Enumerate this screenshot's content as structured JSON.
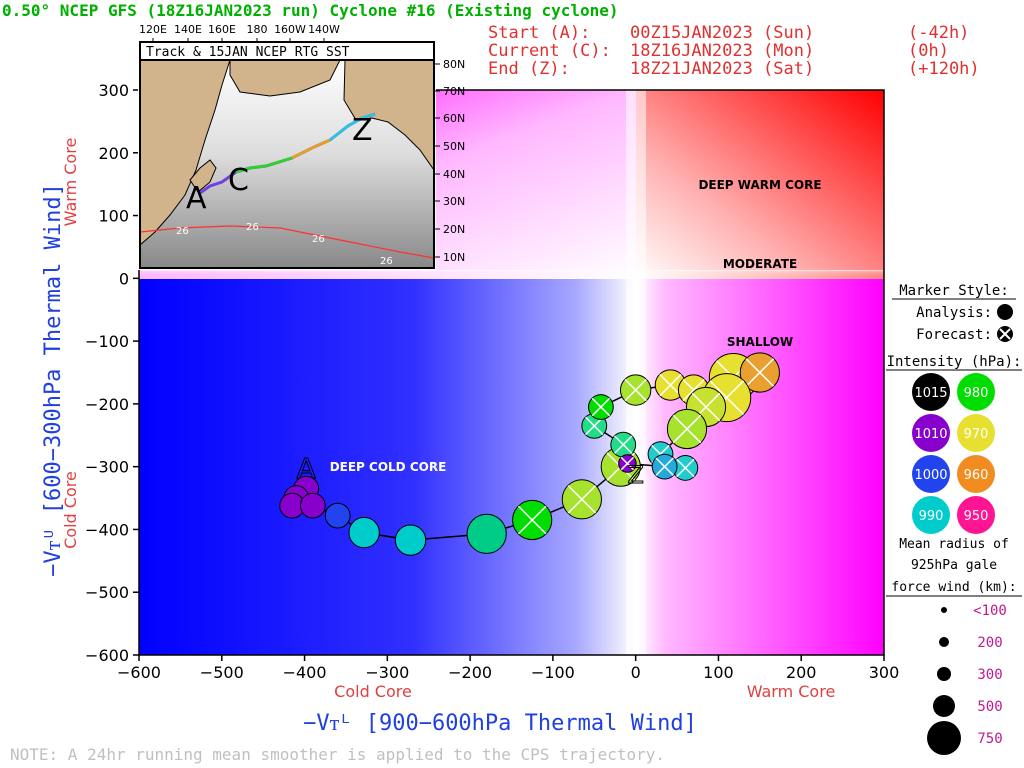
{
  "header": {
    "title": "0.50° NCEP GFS (18Z16JAN2023 run) Cyclone #16 (Existing cyclone)",
    "start_label": "Start (A):",
    "start_time": "00Z15JAN2023 (Sun)",
    "start_offset": "(-42h)",
    "current_label": "Current (C):",
    "current_time": "18Z16JAN2023 (Mon)",
    "current_offset": "(0h)",
    "end_label": "End (Z):",
    "end_time": "18Z21JAN2023 (Sat)",
    "end_offset": "(+120h)"
  },
  "inset": {
    "title": "Track & 15JAN NCEP RTG SST",
    "lon_labels": [
      "120E",
      "140E",
      "160E",
      "180",
      "160W",
      "140W"
    ],
    "lat_labels": [
      "80N",
      "70N",
      "60N",
      "50N",
      "40N",
      "30N",
      "20N",
      "10N"
    ],
    "sst_labels": [
      "26",
      "26",
      "26",
      "26"
    ],
    "letters": [
      "A",
      "C",
      "Z"
    ]
  },
  "quadrants": {
    "deep_warm": "DEEP WARM CORE",
    "moderate": "MODERATE",
    "shallow": "SHALLOW",
    "deep_cold": "DEEP COLD CORE"
  },
  "axes": {
    "ylabel": "−Vᴛᵁ [600−300hPa Thermal Wind]",
    "xlabel": "−Vᴛᴸ [900−600hPa Thermal Wind]",
    "y_warm": "Warm Core",
    "y_cold": "Cold Core",
    "x_cold": "Cold Core",
    "x_warm": "Warm Core"
  },
  "legend": {
    "marker_style_title": "Marker Style:",
    "analysis_label": "Analysis:",
    "forecast_label": "Forecast:",
    "intensity_title": "Intensity (hPa):",
    "intensity_values": [
      "1015",
      "980",
      "1010",
      "970",
      "1000",
      "960",
      "990",
      "950"
    ],
    "intensity_colors": [
      "#000000",
      "#00dd00",
      "#8800cc",
      "#e8e030",
      "#2244ee",
      "#f08c20",
      "#00cccc",
      "#ff1493"
    ],
    "radius_title_1": "Mean radius of",
    "radius_title_2": "925hPa gale",
    "radius_title_3": "force wind (km):",
    "radius_values": [
      "<100",
      "200",
      "300",
      "500",
      "750"
    ]
  },
  "note": "NOTE:  A 24hr running mean smoother is applied to the CPS trajectory.",
  "chart_data": {
    "type": "scatter",
    "title": "0.50° NCEP GFS (18Z16JAN2023 run) Cyclone #16 (Existing cyclone)",
    "xlabel": "−Vᴛᴸ [900−600hPa Thermal Wind]",
    "ylabel": "−Vᴛᵁ [600−300hPa Thermal Wind]",
    "xlim": [
      -600,
      300
    ],
    "ylim": [
      -600,
      300
    ],
    "xticks": [
      -600,
      -500,
      -400,
      -300,
      -200,
      -100,
      0,
      100,
      200,
      300
    ],
    "yticks": [
      -600,
      -500,
      -400,
      -300,
      -200,
      -100,
      0,
      100,
      200,
      300
    ],
    "start_marker": {
      "label": "A",
      "x": -398,
      "y": -312
    },
    "end_marker": {
      "label": "Z",
      "x": 0,
      "y": -310
    },
    "points": [
      {
        "x": -398,
        "y": -335,
        "type": "analysis",
        "color": "#8800cc",
        "radius_km": 200
      },
      {
        "x": -410,
        "y": -350,
        "type": "analysis",
        "color": "#8800cc",
        "radius_km": 200
      },
      {
        "x": -415,
        "y": -362,
        "type": "analysis",
        "color": "#8800cc",
        "radius_km": 200
      },
      {
        "x": -390,
        "y": -362,
        "type": "analysis",
        "color": "#8800cc",
        "radius_km": 200
      },
      {
        "x": -360,
        "y": -378,
        "type": "analysis",
        "color": "#2244ee",
        "radius_km": 200
      },
      {
        "x": -328,
        "y": -405,
        "type": "analysis",
        "color": "#00cccc",
        "radius_km": 300
      },
      {
        "x": -272,
        "y": -417,
        "type": "analysis",
        "color": "#00cccc",
        "radius_km": 300
      },
      {
        "x": -180,
        "y": -407,
        "type": "analysis",
        "color": "#00cc88",
        "radius_km": 500
      },
      {
        "x": -125,
        "y": -385,
        "type": "forecast",
        "color": "#00dd00",
        "radius_km": 500
      },
      {
        "x": -65,
        "y": -352,
        "type": "forecast",
        "color": "#a6e22e",
        "radius_km": 500
      },
      {
        "x": -18,
        "y": -300,
        "type": "forecast",
        "color": "#a6e22e",
        "radius_km": 500
      },
      {
        "x": -15,
        "y": -265,
        "type": "forecast",
        "color": "#22dd88",
        "radius_km": 200
      },
      {
        "x": -50,
        "y": -235,
        "type": "forecast",
        "color": "#22dd88",
        "radius_km": 200
      },
      {
        "x": -42,
        "y": -205,
        "type": "forecast",
        "color": "#00dd00",
        "radius_km": 200
      },
      {
        "x": 0,
        "y": -178,
        "type": "forecast",
        "color": "#a6e22e",
        "radius_km": 300
      },
      {
        "x": 42,
        "y": -170,
        "type": "forecast",
        "color": "#e8e030",
        "radius_km": 300
      },
      {
        "x": 70,
        "y": -178,
        "type": "forecast",
        "color": "#e8e030",
        "radius_km": 300
      },
      {
        "x": 118,
        "y": -158,
        "type": "forecast",
        "color": "#e8e030",
        "radius_km": 750
      },
      {
        "x": 150,
        "y": -150,
        "type": "forecast",
        "color": "#eaa030",
        "radius_km": 500
      },
      {
        "x": 110,
        "y": -190,
        "type": "forecast",
        "color": "#e8e030",
        "radius_km": 750
      },
      {
        "x": 85,
        "y": -205,
        "type": "forecast",
        "color": "#c8e030",
        "radius_km": 500
      },
      {
        "x": 62,
        "y": -240,
        "type": "forecast",
        "color": "#a6e22e",
        "radius_km": 500
      },
      {
        "x": 30,
        "y": -280,
        "type": "forecast",
        "color": "#22cccc",
        "radius_km": 200
      },
      {
        "x": 60,
        "y": -302,
        "type": "forecast",
        "color": "#22cccc",
        "radius_km": 200
      },
      {
        "x": 35,
        "y": -300,
        "type": "forecast",
        "color": "#22aadd",
        "radius_km": 200
      },
      {
        "x": -10,
        "y": -295,
        "type": "forecast",
        "color": "#8800cc",
        "radius_km": 100
      }
    ]
  }
}
